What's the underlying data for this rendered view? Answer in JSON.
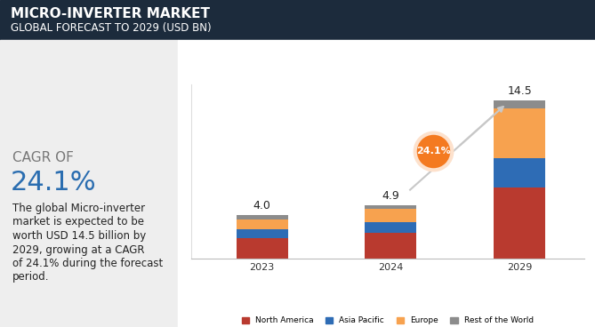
{
  "header": {
    "title": "MICRO-INVERTER MARKET",
    "subtitle": "GLOBAL FORECAST TO 2029 (USD BN)"
  },
  "side_panel": {
    "heading": "CAGR OF",
    "value": "24.1%",
    "description": [
      "The global Micro-inverter",
      "market is expected to be",
      "worth USD 14.5 billion by",
      "2029, growing at a CAGR",
      "of 24.1% during the forecast",
      "period."
    ]
  },
  "chart_data": {
    "type": "bar",
    "stacked": true,
    "tick_labels": "x",
    "legend": "lower center",
    "categories": [
      "2023",
      "2024",
      "2029"
    ],
    "ylim": [
      0,
      16
    ],
    "series": [
      {
        "name": "North America",
        "color": "#b93a2f",
        "values": [
          1.9,
          2.4,
          6.5
        ]
      },
      {
        "name": "Asia Pacific",
        "color": "#2e6cb5",
        "values": [
          0.8,
          0.9,
          2.7
        ]
      },
      {
        "name": "Europe",
        "color": "#f7a24f",
        "values": [
          0.9,
          1.3,
          4.6
        ]
      },
      {
        "name": "Rest of the World",
        "color": "#8c8c8c",
        "values": [
          0.4,
          0.3,
          0.7
        ]
      }
    ],
    "totals": [
      4.0,
      4.9,
      14.5
    ],
    "annotations": [
      "24.1%"
    ]
  }
}
